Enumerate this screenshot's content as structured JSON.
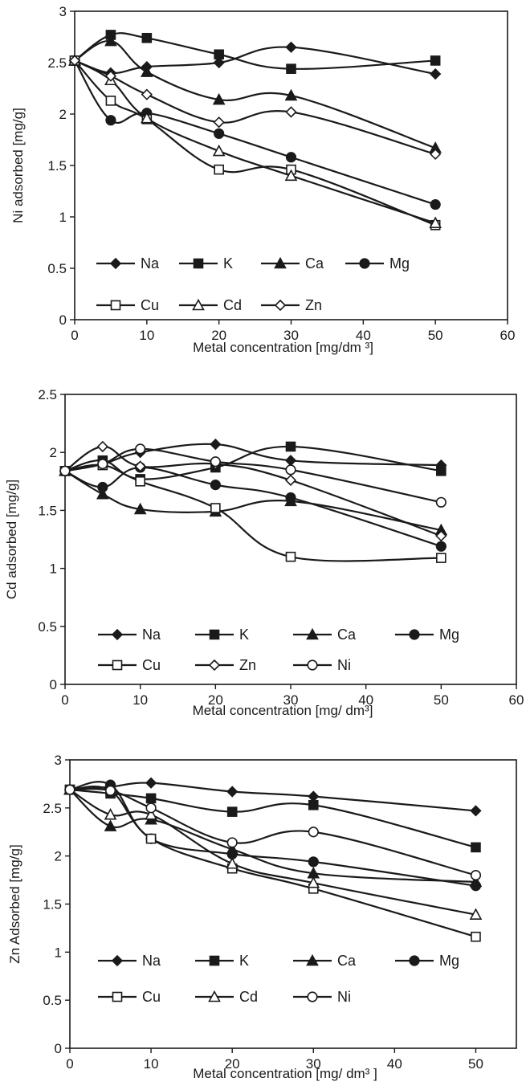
{
  "chart_data": [
    {
      "type": "line",
      "xlabel": "Metal concentration [mg/dm ³]",
      "ylabel": "Ni adsorbed [mg/g]",
      "xlim": [
        0,
        60
      ],
      "ylim": [
        0,
        3
      ],
      "x_ticks": [
        "0",
        "10",
        "20",
        "30",
        "40",
        "50",
        "60"
      ],
      "y_ticks": [
        "0",
        "0.5",
        "1",
        "1.5",
        "2",
        "2.5",
        "3"
      ],
      "grid": false,
      "legend_position": "bottom-inside",
      "x": [
        0,
        5,
        10,
        20,
        30,
        50
      ],
      "series": [
        {
          "name": "Na",
          "marker": "diamond-filled",
          "values": [
            2.52,
            2.4,
            2.46,
            2.5,
            2.65,
            2.39
          ]
        },
        {
          "name": "K",
          "marker": "square-filled",
          "values": [
            2.52,
            2.77,
            2.74,
            2.58,
            2.44,
            2.52
          ]
        },
        {
          "name": "Ca",
          "marker": "triangle-filled",
          "values": [
            2.52,
            2.71,
            2.41,
            2.14,
            2.18,
            1.67
          ]
        },
        {
          "name": "Mg",
          "marker": "circle-filled",
          "values": [
            2.52,
            1.94,
            2.01,
            1.81,
            1.58,
            1.12
          ]
        },
        {
          "name": "Cu",
          "marker": "square-open",
          "values": [
            2.52,
            2.13,
            1.95,
            1.46,
            1.46,
            0.92
          ]
        },
        {
          "name": "Cd",
          "marker": "triangle-open",
          "values": [
            2.52,
            2.33,
            1.96,
            1.64,
            1.4,
            0.94
          ]
        },
        {
          "name": "Zn",
          "marker": "diamond-open",
          "values": [
            2.52,
            2.37,
            2.19,
            1.92,
            2.02,
            1.61
          ]
        }
      ]
    },
    {
      "type": "line",
      "xlabel": "Metal concentration [mg/ dm³]",
      "ylabel": "Cd adsorbed [mg/g]",
      "xlim": [
        0,
        60
      ],
      "ylim": [
        0,
        2.5
      ],
      "x_ticks": [
        "0",
        "10",
        "20",
        "30",
        "40",
        "50",
        "60"
      ],
      "y_ticks": [
        "0",
        "0.5",
        "1",
        "1.5",
        "2",
        "2.5"
      ],
      "grid": false,
      "legend_position": "bottom-inside",
      "x": [
        0,
        5,
        10,
        20,
        30,
        50
      ],
      "series": [
        {
          "name": "Na",
          "marker": "diamond-filled",
          "values": [
            1.84,
            1.9,
            2.0,
            2.07,
            1.93,
            1.89
          ]
        },
        {
          "name": "K",
          "marker": "square-filled",
          "values": [
            1.84,
            1.93,
            1.77,
            1.87,
            2.05,
            1.84
          ]
        },
        {
          "name": "Ca",
          "marker": "triangle-filled",
          "values": [
            1.84,
            1.64,
            1.51,
            1.49,
            1.58,
            1.33
          ]
        },
        {
          "name": "Mg",
          "marker": "circle-filled",
          "values": [
            1.84,
            1.7,
            1.87,
            1.72,
            1.61,
            1.19
          ]
        },
        {
          "name": "Cu",
          "marker": "square-open",
          "values": [
            1.84,
            1.89,
            1.75,
            1.52,
            1.1,
            1.09
          ]
        },
        {
          "name": "Zn",
          "marker": "diamond-open",
          "values": [
            1.84,
            2.05,
            1.88,
            1.9,
            1.76,
            1.28
          ]
        },
        {
          "name": "Ni",
          "marker": "circle-open",
          "values": [
            1.84,
            1.9,
            2.03,
            1.92,
            1.85,
            1.57
          ]
        }
      ]
    },
    {
      "type": "line",
      "xlabel": "Metal concentration [mg/ dm³ ]",
      "ylabel": "Zn Adsorbed [mg/g]",
      "xlim": [
        0,
        55
      ],
      "ylim": [
        0,
        3
      ],
      "x_ticks": [
        "0",
        "10",
        "20",
        "30",
        "40",
        "50"
      ],
      "y_ticks": [
        "0",
        "0.5",
        "1",
        "1.5",
        "2",
        "2.5",
        "3"
      ],
      "grid": false,
      "legend_position": "bottom-inside",
      "x": [
        0,
        5,
        10,
        20,
        30,
        50
      ],
      "series": [
        {
          "name": "Na",
          "marker": "diamond-filled",
          "values": [
            2.69,
            2.72,
            2.76,
            2.67,
            2.62,
            2.47
          ]
        },
        {
          "name": "K",
          "marker": "square-filled",
          "values": [
            2.69,
            2.65,
            2.6,
            2.46,
            2.53,
            2.09
          ]
        },
        {
          "name": "Ca",
          "marker": "triangle-filled",
          "values": [
            2.69,
            2.31,
            2.38,
            2.07,
            1.82,
            1.73
          ]
        },
        {
          "name": "Mg",
          "marker": "circle-filled",
          "values": [
            2.69,
            2.74,
            2.18,
            2.02,
            1.94,
            1.69
          ]
        },
        {
          "name": "Cu",
          "marker": "square-open",
          "values": [
            2.69,
            2.68,
            2.18,
            1.87,
            1.66,
            1.16
          ]
        },
        {
          "name": "Cd",
          "marker": "triangle-open",
          "values": [
            2.69,
            2.43,
            2.43,
            1.92,
            1.72,
            1.39
          ]
        },
        {
          "name": "Ni",
          "marker": "circle-open",
          "values": [
            2.69,
            2.68,
            2.5,
            2.14,
            2.25,
            1.8
          ]
        }
      ]
    }
  ]
}
